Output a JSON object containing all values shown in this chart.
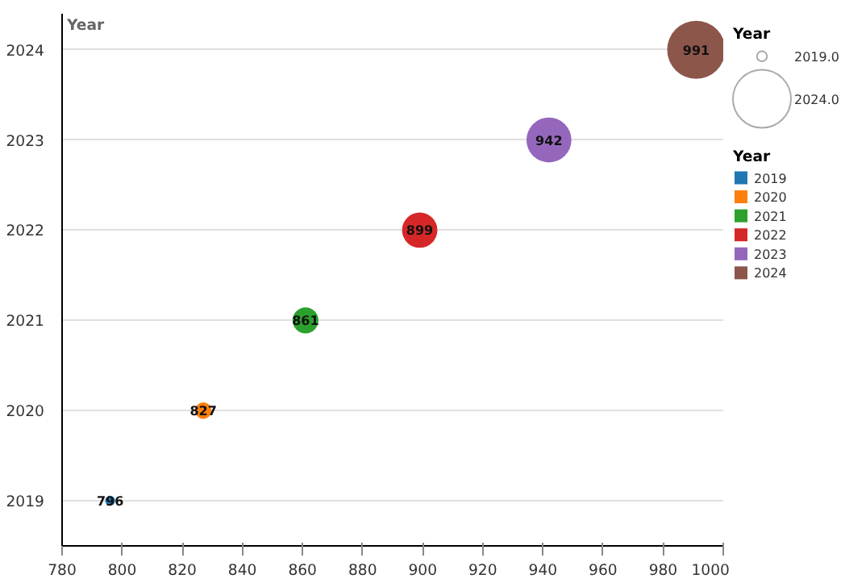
{
  "chart_data": {
    "type": "bubble",
    "ylabel": "Year",
    "legend_title": "Year",
    "xlim": [
      780,
      1000
    ],
    "xticks": [
      780,
      800,
      820,
      840,
      860,
      880,
      900,
      920,
      940,
      960,
      980,
      1000
    ],
    "ylim": [
      2018.5,
      2024.4
    ],
    "yticks": [
      2019,
      2020,
      2021,
      2022,
      2023,
      2024
    ],
    "grid": "y",
    "legend": "right",
    "size_legend": [
      {
        "value": 0.03,
        "label": "2019.0"
      },
      {
        "value": 1,
        "label": "2024.0"
      }
    ],
    "annotations": [
      {
        "text": "796",
        "x": 796,
        "y": 2019
      },
      {
        "text": "827",
        "x": 827,
        "y": 2020
      },
      {
        "text": "861",
        "x": 861,
        "y": 2021
      },
      {
        "text": "899",
        "x": 899,
        "y": 2022
      },
      {
        "text": "942",
        "x": 942,
        "y": 2023
      },
      {
        "text": "991",
        "x": 991,
        "y": 2024
      }
    ],
    "series": [
      {
        "name": "2019",
        "color": "#1f77b4",
        "x": [
          796
        ],
        "values": [
          2019
        ],
        "sizes": [
          0.03
        ]
      },
      {
        "name": "2020",
        "color": "#ff7f0e",
        "x": [
          827
        ],
        "values": [
          2020
        ],
        "sizes": [
          0.08
        ]
      },
      {
        "name": "2021",
        "color": "#2ca02c",
        "x": [
          861
        ],
        "values": [
          2021
        ],
        "sizes": [
          0.2
        ]
      },
      {
        "name": "2022",
        "color": "#d62728",
        "x": [
          899
        ],
        "values": [
          2022
        ],
        "sizes": [
          0.37
        ]
      },
      {
        "name": "2023",
        "color": "#9467bd",
        "x": [
          942
        ],
        "values": [
          2023
        ],
        "sizes": [
          0.6
        ]
      },
      {
        "name": "2024",
        "color": "#8c564b",
        "x": [
          991
        ],
        "values": [
          2024
        ],
        "sizes": [
          1
        ]
      }
    ]
  }
}
